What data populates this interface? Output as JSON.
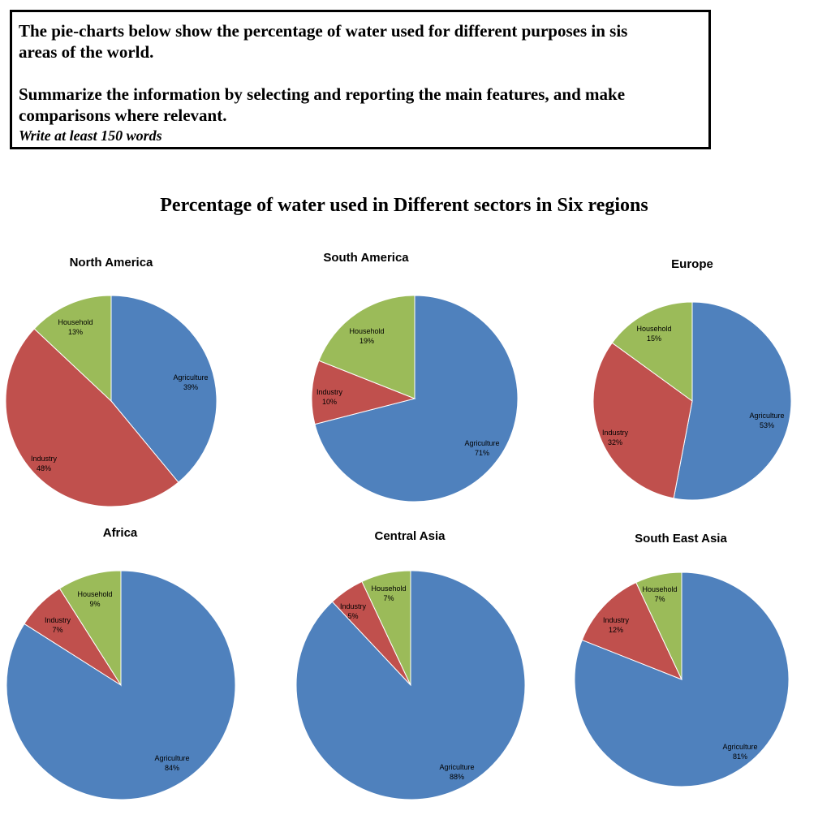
{
  "task": {
    "line1": "The pie-charts below show the percentage of water used for different purposes in sis",
    "line2": "areas of the world.",
    "line3": "Summarize the information by selecting and reporting the main features, and make",
    "line4": "comparisons where relevant.",
    "note": "Write at least 150 words"
  },
  "colors": {
    "Agriculture": "#4f81bd",
    "Industry": "#c0504d",
    "Household": "#9bbb59"
  },
  "chart_data": {
    "type": "pie",
    "title": "Percentage of water used in Different sectors in Six regions",
    "categories": [
      "Agriculture",
      "Industry",
      "Household"
    ],
    "charts": [
      {
        "title": "North America",
        "values": [
          39,
          48,
          13
        ],
        "labels": [
          "39%",
          "48%",
          "13%"
        ]
      },
      {
        "title": "South America",
        "values": [
          71,
          10,
          19
        ],
        "labels": [
          "71%",
          "10%",
          "19%"
        ]
      },
      {
        "title": "Europe",
        "values": [
          53,
          32,
          15
        ],
        "labels": [
          "53%",
          "32%",
          "15%"
        ]
      },
      {
        "title": "Africa",
        "values": [
          84,
          7,
          9
        ],
        "labels": [
          "84%",
          "7%",
          "9%"
        ]
      },
      {
        "title": "Central Asia",
        "values": [
          88,
          5,
          7
        ],
        "labels": [
          "88%",
          "5%",
          "7%"
        ]
      },
      {
        "title": "South East Asia",
        "values": [
          81,
          12,
          7
        ],
        "labels": [
          "81%",
          "12%",
          "7%"
        ]
      }
    ]
  }
}
